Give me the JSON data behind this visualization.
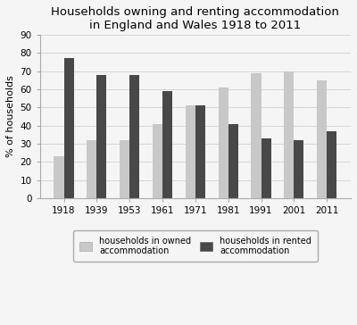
{
  "title": "Households owning and renting accommodation\nin England and Wales 1918 to 2011",
  "years": [
    "1918",
    "1939",
    "1953",
    "1961",
    "1971",
    "1981",
    "1991",
    "2001",
    "2011"
  ],
  "owned": [
    23,
    32,
    32,
    41,
    51,
    61,
    69,
    70,
    65
  ],
  "rented": [
    77,
    68,
    68,
    59,
    51,
    41,
    33,
    32,
    37
  ],
  "owned_color": "#c8c8c8",
  "rented_color": "#484848",
  "ylabel": "% of households",
  "ylim": [
    0,
    90
  ],
  "yticks": [
    0,
    10,
    20,
    30,
    40,
    50,
    60,
    70,
    80,
    90
  ],
  "legend_owned": "households in owned\naccommodation",
  "legend_rented": "households in rented\naccommodation",
  "bar_width": 0.3,
  "title_fontsize": 9.5,
  "axis_fontsize": 8,
  "tick_fontsize": 7.5,
  "legend_fontsize": 7,
  "background_color": "#f5f5f5"
}
